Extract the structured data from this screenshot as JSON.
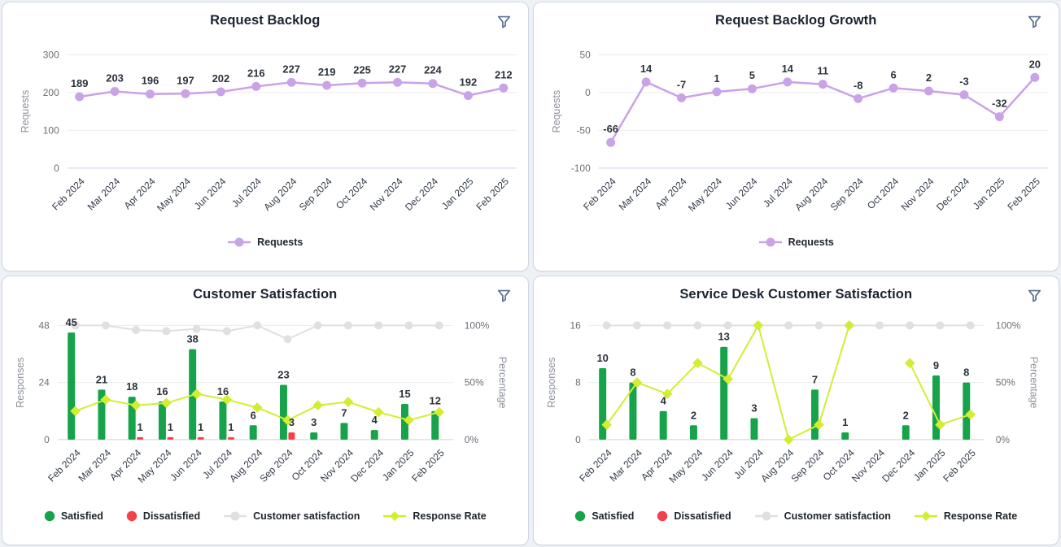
{
  "page": {
    "background": "#eef1f6"
  },
  "colors": {
    "purple": "#c9a2e8",
    "green": "#16a34a",
    "red": "#f5404a",
    "gray_line": "#e0e0e0",
    "yellow": "#d4ed33",
    "grid": "#ececec",
    "grid_zero": "#c8d4e6",
    "tick": "#6a6f76",
    "month_label": "#333b49",
    "axis_title": "#8b919b",
    "data_label": "#2c323b",
    "title": "#1a2332",
    "filter_icon": "#5b7191"
  },
  "chart_data": [
    {
      "id": "request-backlog",
      "type": "line",
      "title": "Request Backlog",
      "categories": [
        "Feb 2024",
        "Mar 2024",
        "Apr 2024",
        "May 2024",
        "Jun 2024",
        "Jul 2024",
        "Aug 2024",
        "Sep 2024",
        "Oct 2024",
        "Nov 2024",
        "Dec 2024",
        "Jan 2025",
        "Feb 2025"
      ],
      "left_axis": {
        "label": "Requests",
        "min": 0,
        "max": 300,
        "ticks": [
          "300",
          "200",
          "100",
          "0"
        ]
      },
      "series": [
        {
          "name": "Requests",
          "type": "line",
          "marker": "circle",
          "color": "#c9a2e8",
          "axis": "left",
          "show_labels": true,
          "values": [
            189,
            203,
            196,
            197,
            202,
            216,
            227,
            219,
            225,
            227,
            224,
            192,
            212
          ]
        }
      ],
      "legend": [
        {
          "label": "Requests",
          "marker": "circle-line",
          "color": "#c9a2e8"
        }
      ]
    },
    {
      "id": "request-backlog-growth",
      "type": "line",
      "title": "Request Backlog Growth",
      "categories": [
        "Feb 2024",
        "Mar 2024",
        "Apr 2024",
        "May 2024",
        "Jun 2024",
        "Jul 2024",
        "Aug 2024",
        "Sep 2024",
        "Oct 2024",
        "Nov 2024",
        "Dec 2024",
        "Jan 2025",
        "Feb 2025"
      ],
      "left_axis": {
        "label": "Requests",
        "min": -100,
        "max": 50,
        "ticks": [
          "50",
          "0",
          "-50",
          "-100"
        ]
      },
      "series": [
        {
          "name": "Requests",
          "type": "line",
          "marker": "circle",
          "color": "#c9a2e8",
          "axis": "left",
          "show_labels": true,
          "values": [
            -66,
            14,
            -7,
            1,
            5,
            14,
            11,
            -8,
            6,
            2,
            -3,
            -32,
            20
          ]
        }
      ],
      "legend": [
        {
          "label": "Requests",
          "marker": "circle-line",
          "color": "#c9a2e8"
        }
      ]
    },
    {
      "id": "customer-satisfaction",
      "type": "bar-line-combo",
      "title": "Customer Satisfaction",
      "categories": [
        "Feb 2024",
        "Mar 2024",
        "Apr 2024",
        "May 2024",
        "Jun 2024",
        "Jul 2024",
        "Aug 2024",
        "Sep 2024",
        "Oct 2024",
        "Nov 2024",
        "Dec 2024",
        "Jan 2025",
        "Feb 2025"
      ],
      "left_axis": {
        "label": "Responses",
        "min": 0,
        "max": 48,
        "ticks": [
          "48",
          "24",
          "0"
        ]
      },
      "right_axis": {
        "label": "Percentage",
        "min": 0,
        "max": 100,
        "ticks": [
          "100%",
          "50%",
          "0%"
        ]
      },
      "series": [
        {
          "name": "Satisfied",
          "type": "bar",
          "color": "#16a34a",
          "axis": "left",
          "show_labels": true,
          "values": [
            45,
            21,
            18,
            16,
            38,
            16,
            6,
            23,
            3,
            7,
            4,
            15,
            12
          ]
        },
        {
          "name": "Dissatisfied",
          "type": "bar",
          "color": "#f5404a",
          "axis": "left",
          "show_labels": true,
          "values": [
            null,
            null,
            1,
            1,
            1,
            1,
            null,
            3,
            null,
            null,
            null,
            null,
            null
          ]
        },
        {
          "name": "Customer satisfaction",
          "type": "line",
          "marker": "circle",
          "color": "#e0e0e0",
          "axis": "right",
          "show_labels": false,
          "values": [
            100,
            100,
            96,
            95,
            97,
            95,
            100,
            88,
            100,
            100,
            100,
            100,
            100
          ]
        },
        {
          "name": "Response Rate",
          "type": "line",
          "marker": "diamond",
          "color": "#d4ed33",
          "axis": "right",
          "show_labels": false,
          "values": [
            25,
            35,
            30,
            32,
            40,
            35,
            28,
            17,
            30,
            33,
            24,
            17,
            24
          ]
        }
      ],
      "legend": [
        {
          "label": "Satisfied",
          "marker": "circle",
          "color": "#16a34a"
        },
        {
          "label": "Dissatisfied",
          "marker": "circle",
          "color": "#f5404a"
        },
        {
          "label": "Customer satisfaction",
          "marker": "circle-line",
          "color": "#e0e0e0"
        },
        {
          "label": "Response Rate",
          "marker": "diamond-line",
          "color": "#d4ed33"
        }
      ]
    },
    {
      "id": "service-desk-customer-satisfaction",
      "type": "bar-line-combo",
      "title": "Service Desk Customer Satisfaction",
      "categories": [
        "Feb 2024",
        "Mar 2024",
        "Apr 2024",
        "May 2024",
        "Jun 2024",
        "Jul 2024",
        "Aug 2024",
        "Sep 2024",
        "Oct 2024",
        "Nov 2024",
        "Dec 2024",
        "Jan 2025",
        "Feb 2025"
      ],
      "left_axis": {
        "label": "Responses",
        "min": 0,
        "max": 16,
        "ticks": [
          "16",
          "8",
          "0"
        ]
      },
      "right_axis": {
        "label": "Percentage",
        "min": 0,
        "max": 100,
        "ticks": [
          "100%",
          "50%",
          "0%"
        ]
      },
      "series": [
        {
          "name": "Satisfied",
          "type": "bar",
          "color": "#16a34a",
          "axis": "left",
          "show_labels": true,
          "values": [
            10,
            8,
            4,
            2,
            13,
            3,
            null,
            7,
            1,
            null,
            2,
            9,
            8
          ]
        },
        {
          "name": "Dissatisfied",
          "type": "bar",
          "color": "#f5404a",
          "axis": "left",
          "show_labels": true,
          "values": [
            null,
            null,
            null,
            null,
            null,
            null,
            null,
            null,
            null,
            null,
            null,
            null,
            null
          ]
        },
        {
          "name": "Customer satisfaction",
          "type": "line",
          "marker": "circle",
          "color": "#e0e0e0",
          "axis": "right",
          "show_labels": false,
          "values": [
            100,
            100,
            100,
            100,
            100,
            100,
            100,
            100,
            100,
            100,
            100,
            100,
            100
          ]
        },
        {
          "name": "Response Rate",
          "type": "line",
          "marker": "diamond",
          "color": "#d4ed33",
          "axis": "right",
          "show_labels": false,
          "values": [
            13,
            50,
            40,
            67,
            53,
            100,
            0,
            13,
            100,
            null,
            67,
            13,
            22
          ]
        }
      ],
      "legend": [
        {
          "label": "Satisfied",
          "marker": "circle",
          "color": "#16a34a"
        },
        {
          "label": "Dissatisfied",
          "marker": "circle",
          "color": "#f5404a"
        },
        {
          "label": "Customer satisfaction",
          "marker": "circle-line",
          "color": "#e0e0e0"
        },
        {
          "label": "Response Rate",
          "marker": "diamond-line",
          "color": "#d4ed33"
        }
      ]
    }
  ]
}
